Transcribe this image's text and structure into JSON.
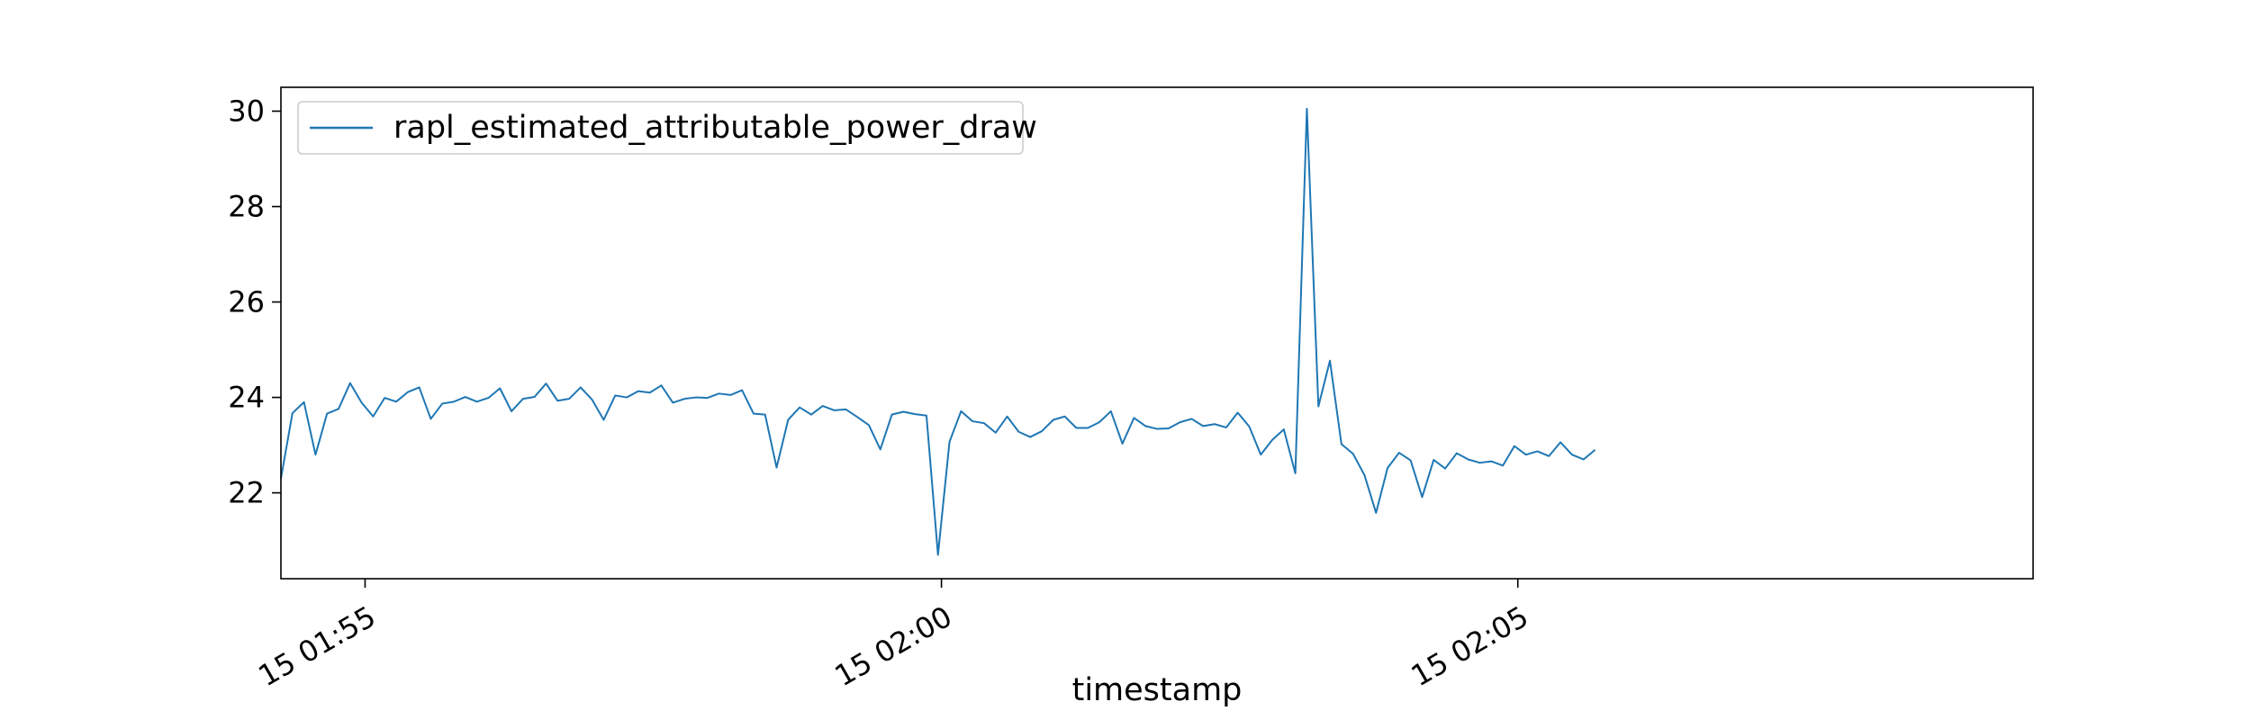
{
  "chart_data": {
    "type": "line",
    "title": "",
    "xlabel": "timestamp",
    "ylabel": "",
    "x_tick_labels": [
      "15 01:55",
      "15 02:00",
      "15 02:05"
    ],
    "y_ticks": [
      22,
      24,
      26,
      28,
      30
    ],
    "y_tick_labels": [
      "22",
      "24",
      "26",
      "28",
      "30"
    ],
    "xlim": [
      0,
      152
    ],
    "x_ticks_at": [
      7.3,
      57.3,
      107.3
    ],
    "ylim": [
      20.2,
      30.5
    ],
    "grid": false,
    "legend": "upper left",
    "series": [
      {
        "name": "rapl_estimated_attributable_power_draw",
        "color": "#1f77b4",
        "values": [
          22.3,
          23.67,
          23.9,
          22.8,
          23.66,
          23.76,
          24.3,
          23.89,
          23.6,
          23.99,
          23.91,
          24.11,
          24.21,
          23.55,
          23.87,
          23.91,
          24.01,
          23.91,
          23.99,
          24.19,
          23.71,
          23.97,
          24.01,
          24.29,
          23.93,
          23.97,
          24.21,
          23.95,
          23.53,
          24.04,
          24.0,
          24.13,
          24.1,
          24.25,
          23.89,
          23.97,
          24.0,
          23.99,
          24.08,
          24.05,
          24.15,
          23.66,
          23.64,
          22.53,
          23.53,
          23.79,
          23.64,
          23.82,
          23.73,
          23.75,
          23.59,
          23.42,
          22.91,
          23.64,
          23.7,
          23.65,
          23.62,
          20.7,
          23.07,
          23.71,
          23.5,
          23.46,
          23.26,
          23.6,
          23.28,
          23.17,
          23.29,
          23.53,
          23.6,
          23.36,
          23.36,
          23.48,
          23.71,
          23.03,
          23.57,
          23.4,
          23.34,
          23.35,
          23.48,
          23.55,
          23.4,
          23.44,
          23.37,
          23.68,
          23.39,
          22.8,
          23.11,
          23.33,
          22.41,
          30.05,
          23.81,
          24.77,
          23.02,
          22.82,
          22.37,
          21.58,
          22.52,
          22.84,
          22.68,
          21.91,
          22.69,
          22.51,
          22.83,
          22.7,
          22.63,
          22.66,
          22.57,
          22.98,
          22.8,
          22.87,
          22.77,
          23.06,
          22.8,
          22.7,
          22.9
        ]
      }
    ]
  }
}
